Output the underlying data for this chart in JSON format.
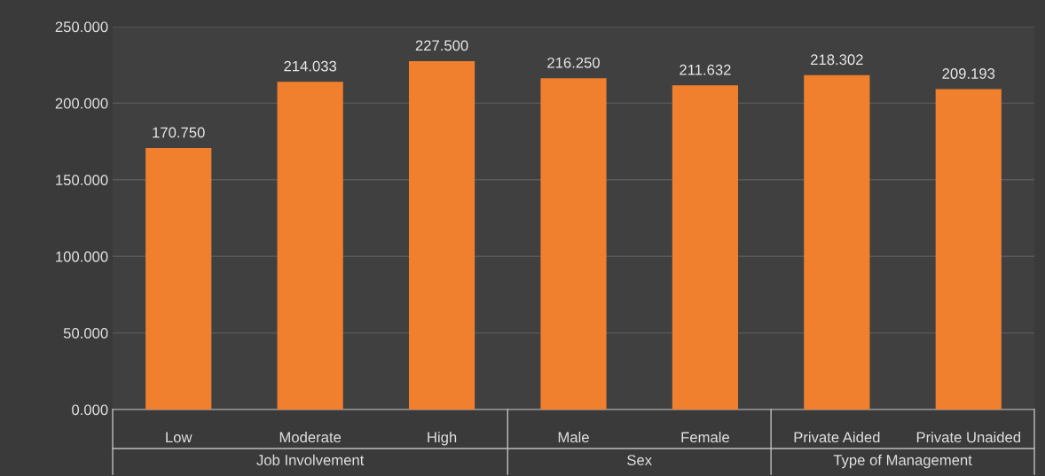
{
  "chart_data": {
    "type": "bar",
    "categories": [
      "Low",
      "Moderate",
      "High",
      "Male",
      "Female",
      "Private Aided",
      "Private Unaided"
    ],
    "values": [
      170.75,
      214.033,
      227.5,
      216.25,
      211.632,
      218.302,
      209.193
    ],
    "value_labels": [
      "170.750",
      "214.033",
      "227.500",
      "216.250",
      "211.632",
      "218.302",
      "209.193"
    ],
    "color": "#f07f2e",
    "ylim": [
      0,
      250
    ],
    "yticks": [
      {
        "value": 0,
        "label": "0.000"
      },
      {
        "value": 50,
        "label": "50.000"
      },
      {
        "value": 100,
        "label": "100.000"
      },
      {
        "value": 150,
        "label": "150.000"
      },
      {
        "value": 200,
        "label": "200.000"
      },
      {
        "value": 250,
        "label": "250.000"
      }
    ],
    "grid": "y",
    "legend": false,
    "annotations": [
      "Job Involvement",
      "Sex",
      "Type of Management"
    ]
  }
}
